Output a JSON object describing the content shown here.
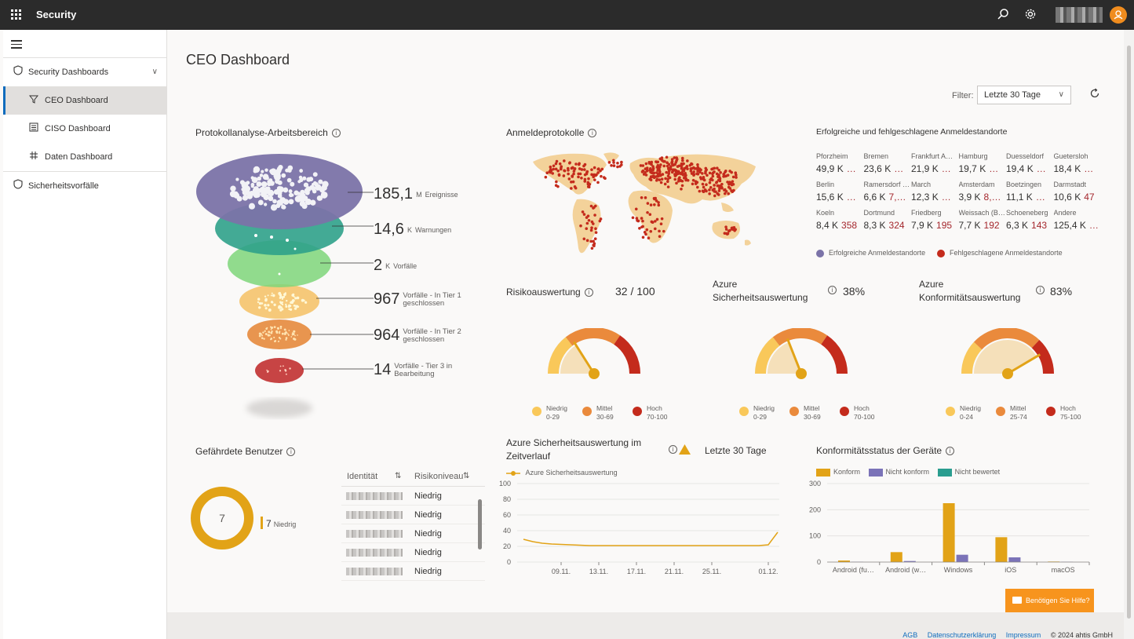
{
  "app": {
    "title": "Security"
  },
  "topbar": {
    "search_icon": "search-icon",
    "settings_icon": "gear-icon",
    "avatar_initial": "👤"
  },
  "sidebar": {
    "items": [
      {
        "label": "Security Dashboards",
        "icon": "shield-icon"
      },
      {
        "label": "CEO Dashboard",
        "icon": "filter-icon"
      },
      {
        "label": "CISO Dashboard",
        "icon": "list-icon"
      },
      {
        "label": "Daten Dashboard",
        "icon": "grid-icon"
      },
      {
        "label": "Sicherheitsvorfälle",
        "icon": "shield-icon"
      }
    ]
  },
  "page": {
    "title": "CEO Dashboard"
  },
  "filter": {
    "label": "Filter:",
    "value": "Letzte 30 Tage"
  },
  "funnel": {
    "title": "Protokollanalyse-Arbeitsbereich",
    "stages": [
      {
        "value": "185,1",
        "unit": "M",
        "desc": "Ereignisse",
        "color": "#7b73a8"
      },
      {
        "value": "14,6",
        "unit": "K",
        "desc": "Warnungen",
        "color": "#2fa18a"
      },
      {
        "value": "2",
        "unit": "K",
        "desc": "Vorfälle",
        "color": "#7ed67a"
      },
      {
        "value": "967",
        "unit": "",
        "desc": "Vorfälle - In Tier 1 geschlossen",
        "color": "#f5c36b"
      },
      {
        "value": "964",
        "unit": "",
        "desc": "Vorfälle - In Tier 2 geschlossen",
        "color": "#e58a3c"
      },
      {
        "value": "14",
        "unit": "",
        "desc": "Vorfälle - Tier 3 in Bearbeitung",
        "color": "#c83232"
      }
    ]
  },
  "signin_map": {
    "title": "Anmeldeprotokolle"
  },
  "locations": {
    "title": "Erfolgreiche und fehlgeschlagene Anmeldestandorte",
    "items": [
      {
        "name": "Pforzheim",
        "success": "49,9 K",
        "fail": "…"
      },
      {
        "name": "Bremen",
        "success": "23,6 K",
        "fail": "…"
      },
      {
        "name": "Frankfurt A…",
        "success": "21,9 K",
        "fail": "…"
      },
      {
        "name": "Hamburg",
        "success": "19,7 K",
        "fail": "…"
      },
      {
        "name": "Duesseldorf",
        "success": "19,4 K",
        "fail": "…"
      },
      {
        "name": "Guetersloh",
        "success": "18,4 K",
        "fail": "…"
      },
      {
        "name": "Berlin",
        "success": "15,6 K",
        "fail": "…"
      },
      {
        "name": "Ramersdorf …",
        "success": "6,6 K",
        "fail": "7,…"
      },
      {
        "name": "March",
        "success": "12,3 K",
        "fail": "…"
      },
      {
        "name": "Amsterdam",
        "success": "3,9 K",
        "fail": "8,…"
      },
      {
        "name": "Boetzingen",
        "success": "11,1 K",
        "fail": "…"
      },
      {
        "name": "Darmstadt",
        "success": "10,6 K",
        "fail": "47"
      },
      {
        "name": "Koeln",
        "success": "8,4 K",
        "fail": "358"
      },
      {
        "name": "Dortmund",
        "success": "8,3 K",
        "fail": "324"
      },
      {
        "name": "Friedberg",
        "success": "7,9 K",
        "fail": "195"
      },
      {
        "name": "Weissach (B…",
        "success": "7,7 K",
        "fail": "192"
      },
      {
        "name": "Schoeneberg",
        "success": "6,3 K",
        "fail": "143"
      },
      {
        "name": "Andere",
        "success": "125,4 K",
        "fail": "…"
      }
    ],
    "legend_success": "Erfolgreiche Anmeldestandorte",
    "legend_fail": "Fehlgeschlagene Anmeldestandorte",
    "success_color": "#7b73a8",
    "fail_color": "#c42b1c"
  },
  "scores": [
    {
      "title": "Risikoauswertung",
      "value": "32 / 100",
      "level": 0.32,
      "legend": [
        {
          "label": "Niedrig",
          "range": "0-29",
          "color": "#f9c85a"
        },
        {
          "label": "Mittel",
          "range": "30-69",
          "color": "#ea8a3c"
        },
        {
          "label": "Hoch",
          "range": "70-100",
          "color": "#c42b1c"
        }
      ]
    },
    {
      "title": "Azure Sicherheitsauswertung",
      "value": "38%",
      "level": 0.38,
      "legend": [
        {
          "label": "Niedrig",
          "range": "0-29",
          "color": "#f9c85a"
        },
        {
          "label": "Mittel",
          "range": "30-69",
          "color": "#ea8a3c"
        },
        {
          "label": "Hoch",
          "range": "70-100",
          "color": "#c42b1c"
        }
      ]
    },
    {
      "title": "Azure Konformitätsauswertung",
      "value": "83%",
      "level": 0.83,
      "legend": [
        {
          "label": "Niedrig",
          "range": "0-24",
          "color": "#f9c85a"
        },
        {
          "label": "Mittel",
          "range": "25-74",
          "color": "#ea8a3c"
        },
        {
          "label": "Hoch",
          "range": "75-100",
          "color": "#c42b1c"
        }
      ]
    }
  ],
  "users": {
    "title": "Gefährdete Benutzer",
    "donut_value": "7",
    "legend_count": "7",
    "legend_label": "Niedrig",
    "columns": [
      "Identität",
      "Risikoniveau"
    ],
    "rows": [
      {
        "risk": "Niedrig"
      },
      {
        "risk": "Niedrig"
      },
      {
        "risk": "Niedrig"
      },
      {
        "risk": "Niedrig"
      },
      {
        "risk": "Niedrig"
      }
    ]
  },
  "trend": {
    "title": "Azure Sicherheitsauswertung im Zeitverlauf",
    "period": "Letzte 30 Tage",
    "legend": "Azure Sicherheitsauswertung"
  },
  "devices": {
    "title": "Konformitätsstatus der Geräte",
    "legend": [
      {
        "label": "Konform",
        "color": "#e2a317"
      },
      {
        "label": "Nicht konform",
        "color": "#7b73b8"
      },
      {
        "label": "Nicht bewertet",
        "color": "#2a9d8f"
      }
    ]
  },
  "chart_data": [
    {
      "type": "line",
      "title": "Azure Sicherheitsauswertung im Zeitverlauf",
      "series": [
        {
          "name": "Azure Sicherheitsauswertung",
          "values": [
            29,
            26,
            24,
            23,
            22.5,
            22,
            21.5,
            21,
            21,
            21,
            21,
            21,
            21,
            21,
            21,
            21,
            21,
            21,
            21,
            21,
            21,
            21,
            21,
            21,
            21,
            21,
            22,
            38
          ]
        }
      ],
      "x_ticks": [
        "09.11.",
        "13.11.",
        "17.11.",
        "21.11.",
        "25.11.",
        "01.12."
      ],
      "ylim": [
        0,
        100
      ],
      "y_ticks": [
        0,
        20,
        40,
        60,
        80,
        100
      ]
    },
    {
      "type": "bar",
      "title": "Konformitätsstatus der Geräte",
      "categories": [
        "Android (fu…",
        "Android (w…",
        "Windows",
        "iOS",
        "macOS"
      ],
      "series": [
        {
          "name": "Konform",
          "values": [
            6,
            38,
            225,
            95,
            2
          ]
        },
        {
          "name": "Nicht konform",
          "values": [
            1,
            4,
            28,
            18,
            1
          ]
        },
        {
          "name": "Nicht bewertet",
          "values": [
            0,
            0,
            0,
            0,
            0
          ]
        }
      ],
      "ylim": [
        0,
        300
      ],
      "y_ticks": [
        0,
        100,
        200,
        300
      ]
    }
  ],
  "help": {
    "label": "Benötigen Sie Hilfe?"
  },
  "footer": {
    "links": [
      "AGB",
      "Datenschutzerklärung",
      "Impressum"
    ],
    "copyright": "© 2024 ahtis GmbH"
  }
}
